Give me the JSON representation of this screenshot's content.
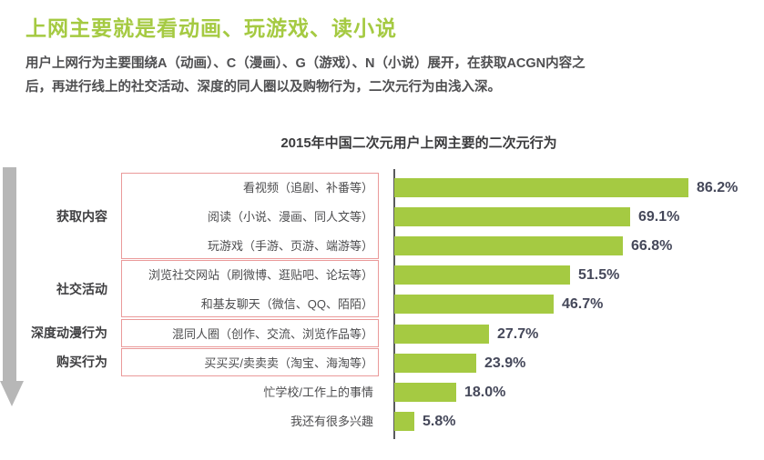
{
  "page": {
    "title": "上网主要就是看动画、玩游戏、读小说",
    "description_lines": [
      "用户上网行为主要围绕A（动画）、C（漫画）、G（游戏）、N（小说）展开，在获取ACGN内容之",
      "后，再进行线上的社交活动、深度的同人圈以及购物行为，二次元行为由浅入深。"
    ]
  },
  "colors": {
    "accent_green": "#a5ca42",
    "group_box_red": "#ea9a9a",
    "arrow_gray": "#b7b7b7",
    "label_text": "#4d4d4f",
    "value_text": "#45485a"
  },
  "chart_data": {
    "type": "bar",
    "orientation": "horizontal",
    "title": "2015年中国二次元用户上网主要的二次元行为",
    "xlabel": "",
    "ylabel": "",
    "unit": "%",
    "xlim": [
      0,
      100
    ],
    "grid": false,
    "legend": false,
    "categories": [
      "看视频（追剧、补番等）",
      "阅读（小说、漫画、同人文等）",
      "玩游戏（手游、页游、端游等）",
      "浏览社交网站（刷微博、逛贴吧、论坛等）",
      "和基友聊天（微信、QQ、陌陌）",
      "混同人圈（创作、交流、浏览作品等）",
      "买买买/卖卖卖（淘宝、海淘等）",
      "忙学校/工作上的事情",
      "我还有很多兴趣"
    ],
    "values": [
      86.2,
      69.1,
      66.8,
      51.5,
      46.7,
      27.7,
      23.9,
      18.0,
      5.8
    ],
    "value_labels": [
      "86.2%",
      "69.1%",
      "66.8%",
      "51.5%",
      "46.7%",
      "27.7%",
      "23.9%",
      "18.0%",
      "5.8%"
    ],
    "groups": [
      {
        "label": "获取内容",
        "rows": [
          0,
          2
        ]
      },
      {
        "label": "社交活动",
        "rows": [
          3,
          4
        ]
      },
      {
        "label": "深度动漫行为",
        "rows": [
          5,
          5
        ]
      },
      {
        "label": "购买行为",
        "rows": [
          6,
          6
        ]
      }
    ]
  }
}
